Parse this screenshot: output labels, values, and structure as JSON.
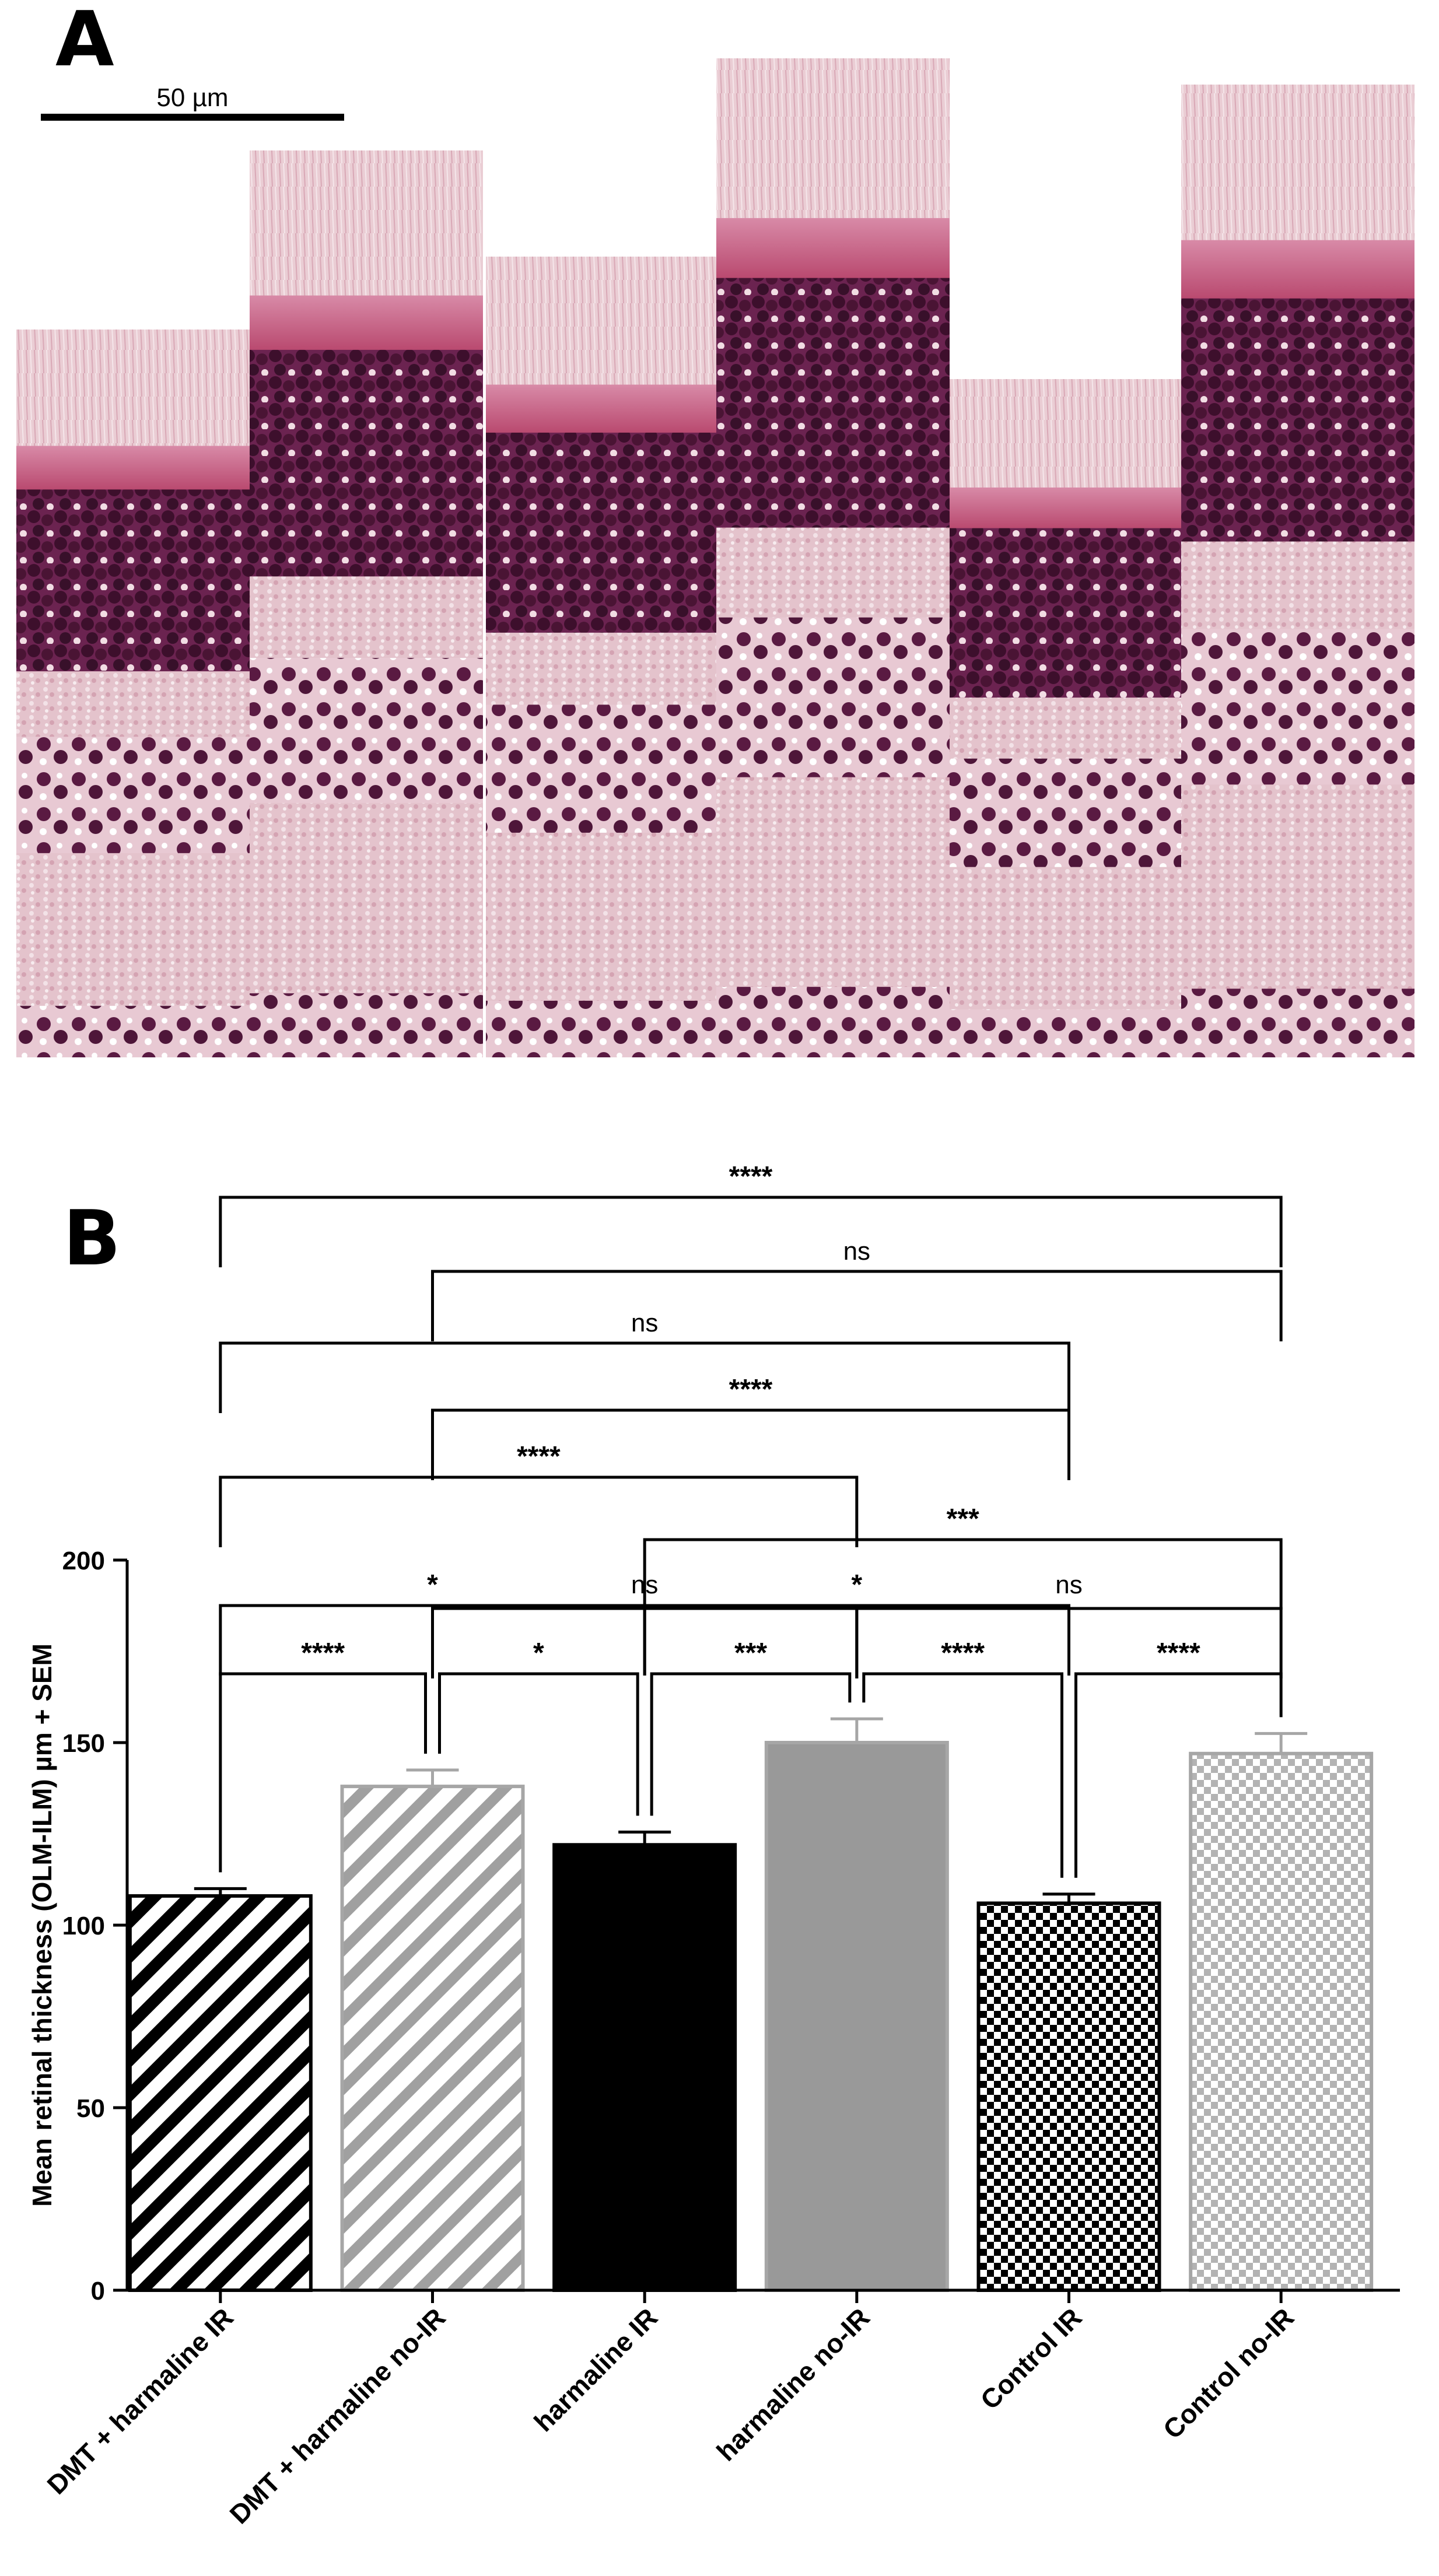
{
  "panel_a": {
    "letter": "A",
    "scale_bar_label": "50 µm",
    "colors": {
      "stain_pink": "#e9c6cf",
      "stain_rose": "#c65b86",
      "nuclei": "#4a1434",
      "background": "#ffffff"
    }
  },
  "panel_b": {
    "letter": "B"
  },
  "chart_data": {
    "type": "bar",
    "title": "",
    "xlabel": "",
    "ylabel": "Mean retinal thickness (OLM-ILM) µm + SEM",
    "ylim": [
      0,
      200
    ],
    "yticks": [
      "0",
      "50",
      "100",
      "150",
      "200"
    ],
    "grid": false,
    "categories": [
      "DMT + harmaline IR",
      "DMT + harmaline no-IR",
      "harmaline IR",
      "harmaline no-IR",
      "Control IR",
      "Control no-IR"
    ],
    "values": [
      108,
      138,
      122,
      150,
      106,
      147
    ],
    "errors": [
      2,
      4.5,
      3.5,
      6.5,
      2.5,
      5.5
    ],
    "fills": [
      "diagonal-black",
      "diagonal-gray",
      "solid-black",
      "solid-gray",
      "checker-black",
      "checker-gray"
    ],
    "colors": {
      "black": "#000000",
      "gray": "#999999",
      "light_gray": "#a6a6a6"
    },
    "comparisons": [
      {
        "from": 0,
        "to": 1,
        "label": "****"
      },
      {
        "from": 1,
        "to": 2,
        "label": "*"
      },
      {
        "from": 2,
        "to": 3,
        "label": "***"
      },
      {
        "from": 3,
        "to": 4,
        "label": "****"
      },
      {
        "from": 4,
        "to": 5,
        "label": "****"
      },
      {
        "from": 0,
        "to": 2,
        "label": "*"
      },
      {
        "from": 2,
        "to": 4,
        "label": "*"
      },
      {
        "from": 1,
        "to": 3,
        "label": "ns"
      },
      {
        "from": 3,
        "to": 5,
        "label": "ns"
      },
      {
        "from": 2,
        "to": 5,
        "label": "***"
      },
      {
        "from": 0,
        "to": 3,
        "label": "****"
      },
      {
        "from": 1,
        "to": 4,
        "label": "****"
      },
      {
        "from": 0,
        "to": 4,
        "label": "ns"
      },
      {
        "from": 1,
        "to": 5,
        "label": "ns"
      },
      {
        "from": 0,
        "to": 5,
        "label": "****"
      }
    ]
  }
}
